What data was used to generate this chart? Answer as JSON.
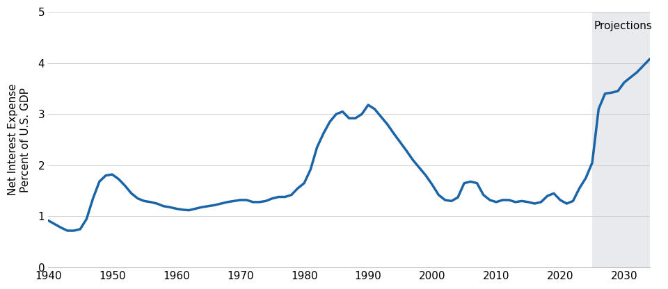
{
  "ylabel": "Net Interest Expense\nPercent of U.S. GDP",
  "projection_label": "Projections",
  "projection_start": 2025,
  "xlim": [
    1940,
    2034
  ],
  "ylim": [
    0,
    5
  ],
  "yticks": [
    0,
    1,
    2,
    3,
    4,
    5
  ],
  "xticks": [
    1940,
    1950,
    1960,
    1970,
    1980,
    1990,
    2000,
    2010,
    2020,
    2030
  ],
  "line_color": "#1a65a8",
  "projection_bg": "#e8eaed",
  "background_color": "#ffffff",
  "line_width": 2.5,
  "years": [
    1940,
    1941,
    1942,
    1943,
    1944,
    1945,
    1946,
    1947,
    1948,
    1949,
    1950,
    1951,
    1952,
    1953,
    1954,
    1955,
    1956,
    1957,
    1958,
    1959,
    1960,
    1961,
    1962,
    1963,
    1964,
    1965,
    1966,
    1967,
    1968,
    1969,
    1970,
    1971,
    1972,
    1973,
    1974,
    1975,
    1976,
    1977,
    1978,
    1979,
    1980,
    1981,
    1982,
    1983,
    1984,
    1985,
    1986,
    1987,
    1988,
    1989,
    1990,
    1991,
    1992,
    1993,
    1994,
    1995,
    1996,
    1997,
    1998,
    1999,
    2000,
    2001,
    2002,
    2003,
    2004,
    2005,
    2006,
    2007,
    2008,
    2009,
    2010,
    2011,
    2012,
    2013,
    2014,
    2015,
    2016,
    2017,
    2018,
    2019,
    2020,
    2021,
    2022,
    2023,
    2024,
    2025,
    2026,
    2027,
    2028,
    2029,
    2030,
    2031,
    2032,
    2033,
    2034
  ],
  "values": [
    0.92,
    0.85,
    0.78,
    0.72,
    0.72,
    0.75,
    0.95,
    1.35,
    1.68,
    1.8,
    1.82,
    1.73,
    1.6,
    1.45,
    1.35,
    1.3,
    1.28,
    1.25,
    1.2,
    1.18,
    1.15,
    1.13,
    1.12,
    1.15,
    1.18,
    1.2,
    1.22,
    1.25,
    1.28,
    1.3,
    1.32,
    1.32,
    1.28,
    1.28,
    1.3,
    1.35,
    1.38,
    1.38,
    1.42,
    1.55,
    1.65,
    1.92,
    2.35,
    2.62,
    2.85,
    3.0,
    3.05,
    2.92,
    2.92,
    3.0,
    3.18,
    3.1,
    2.95,
    2.8,
    2.62,
    2.45,
    2.28,
    2.1,
    1.95,
    1.8,
    1.62,
    1.42,
    1.32,
    1.3,
    1.37,
    1.65,
    1.68,
    1.65,
    1.42,
    1.32,
    1.28,
    1.32,
    1.32,
    1.28,
    1.3,
    1.28,
    1.25,
    1.28,
    1.4,
    1.45,
    1.32,
    1.25,
    1.3,
    1.55,
    1.75,
    2.05,
    3.1,
    3.4,
    3.42,
    3.45,
    3.62,
    3.72,
    3.82,
    3.95,
    4.08
  ]
}
